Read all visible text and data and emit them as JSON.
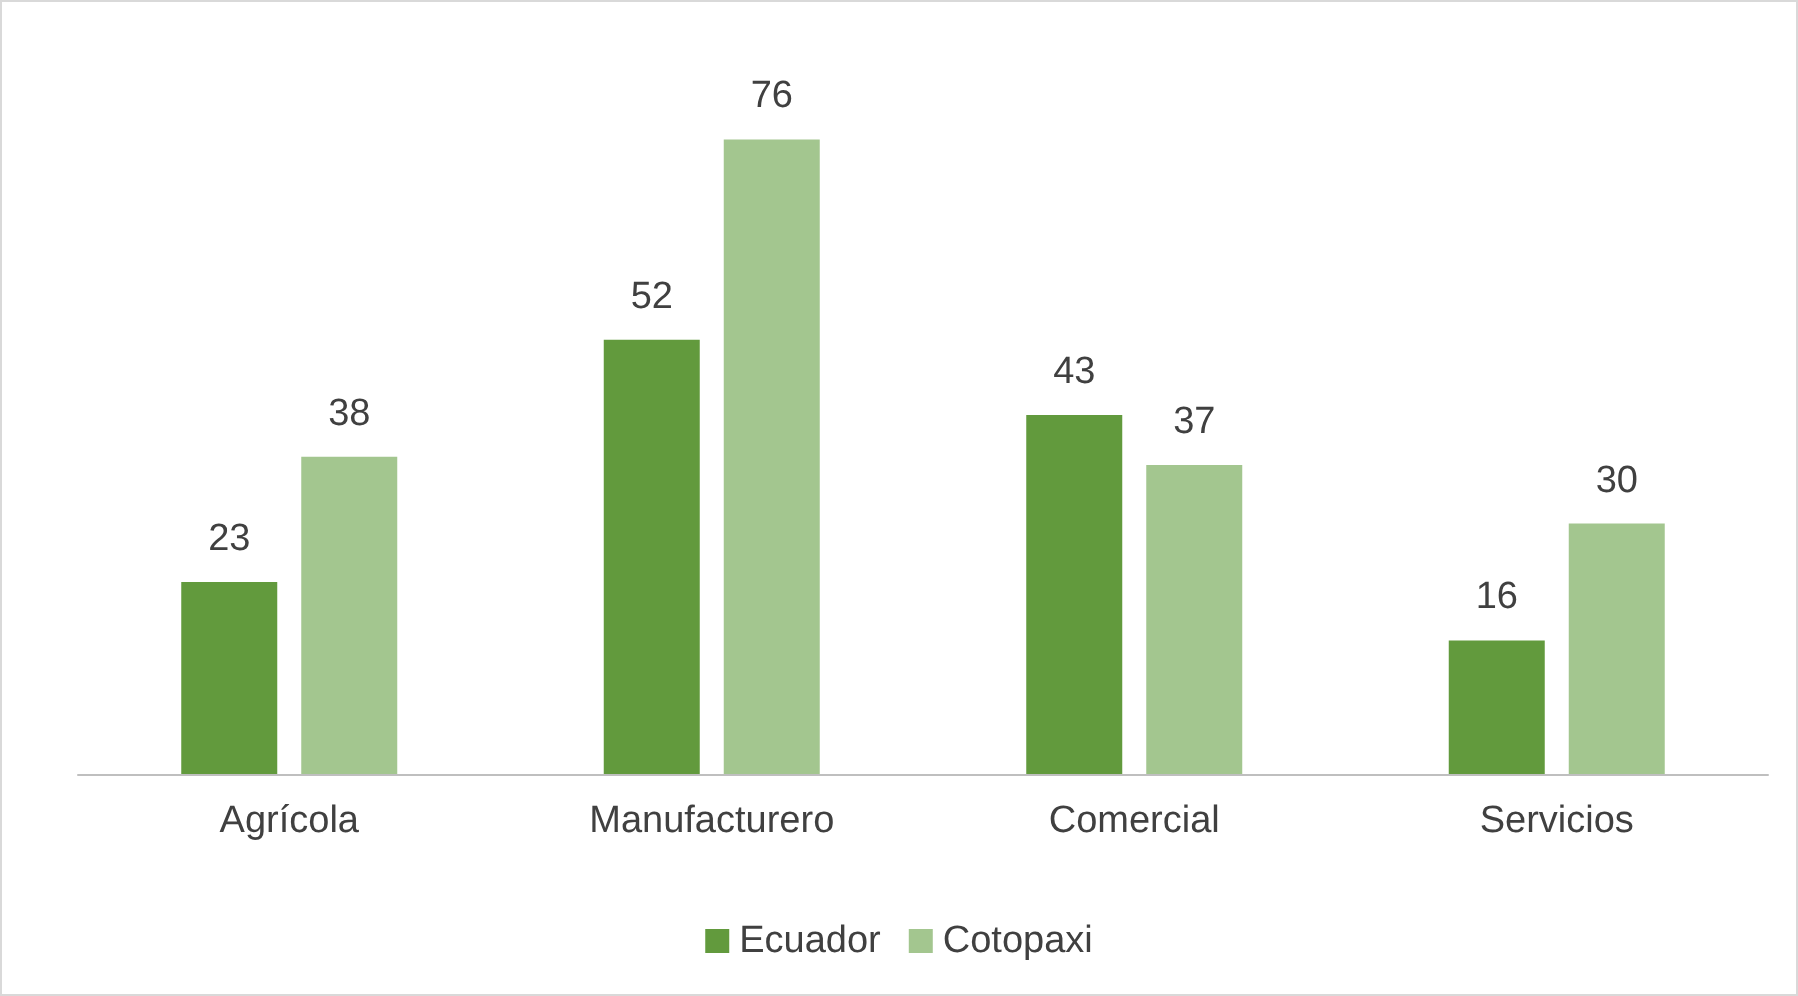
{
  "chart_data": {
    "type": "bar",
    "categories": [
      "Agrícola",
      "Manufacturero",
      "Comercial",
      "Servicios"
    ],
    "series": [
      {
        "name": "Ecuador",
        "color": "#629a3d",
        "values": [
          23,
          52,
          43,
          16
        ]
      },
      {
        "name": "Cotopaxi",
        "color": "#a3c68f",
        "values": [
          38,
          76,
          37,
          30
        ]
      }
    ],
    "data_labels": true,
    "legend": "bottom"
  }
}
